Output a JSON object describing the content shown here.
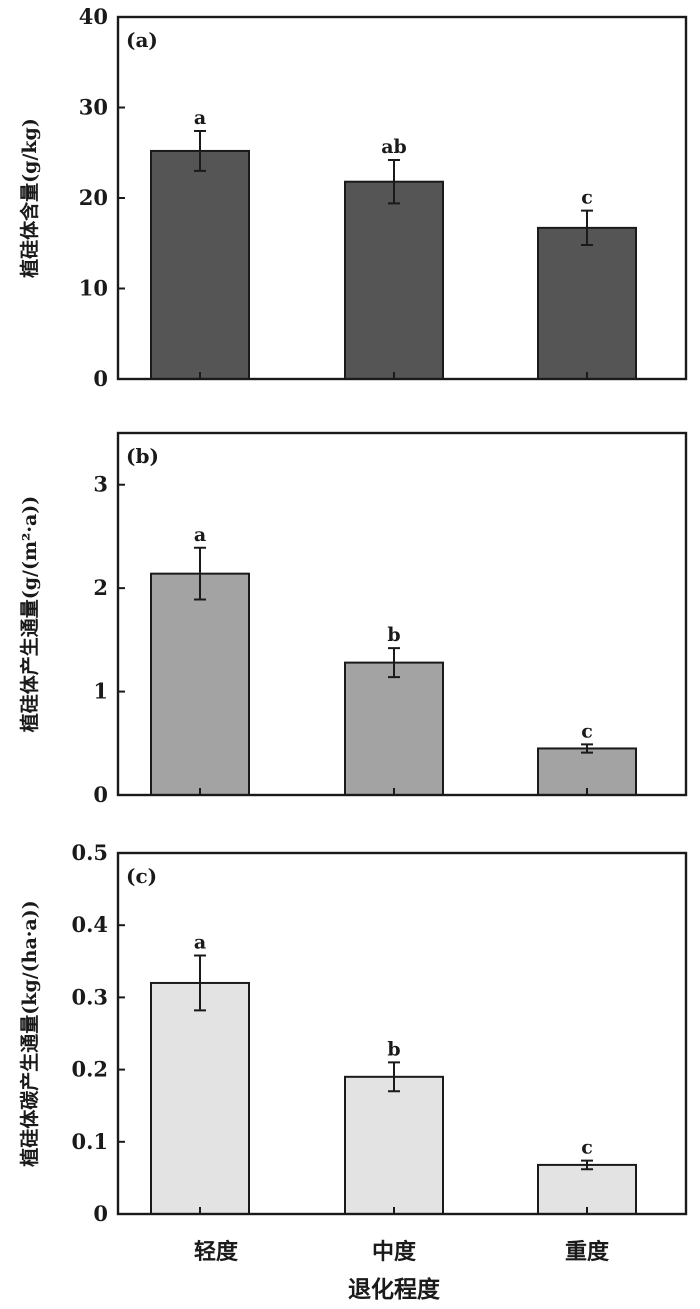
{
  "chart_data": [
    {
      "type": "bar",
      "panel_label": "(a)",
      "categories": [
        "轻度",
        "中度",
        "重度"
      ],
      "values": [
        25.2,
        21.8,
        16.7
      ],
      "errors": [
        2.2,
        2.4,
        1.9
      ],
      "significance": [
        "a",
        "ab",
        "c"
      ],
      "ylabel": "植硅体含量(g/kg)",
      "ylim": [
        0,
        40
      ],
      "yticks": [
        0,
        10,
        20,
        30,
        40
      ],
      "ytick_labels": [
        "0",
        "10",
        "20",
        "30",
        "40"
      ],
      "bar_color": "#555555"
    },
    {
      "type": "bar",
      "panel_label": "(b)",
      "categories": [
        "轻度",
        "中度",
        "重度"
      ],
      "values": [
        2.14,
        1.28,
        0.45
      ],
      "errors": [
        0.25,
        0.14,
        0.04
      ],
      "significance": [
        "a",
        "b",
        "c"
      ],
      "ylabel": "植硅体产生通量(g/(m²·a))",
      "ylim": [
        0,
        3.5
      ],
      "yticks": [
        0,
        1,
        2,
        3
      ],
      "ytick_labels": [
        "0",
        "1",
        "2",
        "3"
      ],
      "bar_color": "#a3a3a3"
    },
    {
      "type": "bar",
      "panel_label": "(c)",
      "categories": [
        "轻度",
        "中度",
        "重度"
      ],
      "values": [
        0.32,
        0.19,
        0.068
      ],
      "errors": [
        0.038,
        0.02,
        0.006
      ],
      "significance": [
        "a",
        "b",
        "c"
      ],
      "ylabel": "植硅体碳产生通量(kg/(ha·a))",
      "ylim": [
        0,
        0.5
      ],
      "yticks": [
        0,
        0.1,
        0.2,
        0.3,
        0.4,
        0.5
      ],
      "ytick_labels": [
        "0",
        "0.1",
        "0.2",
        "0.3",
        "0.4",
        "0.5"
      ],
      "bar_color": "#e3e3e3"
    }
  ],
  "xaxis": {
    "categories": [
      "轻度",
      "中度",
      "重度"
    ],
    "label": "退化程度"
  }
}
